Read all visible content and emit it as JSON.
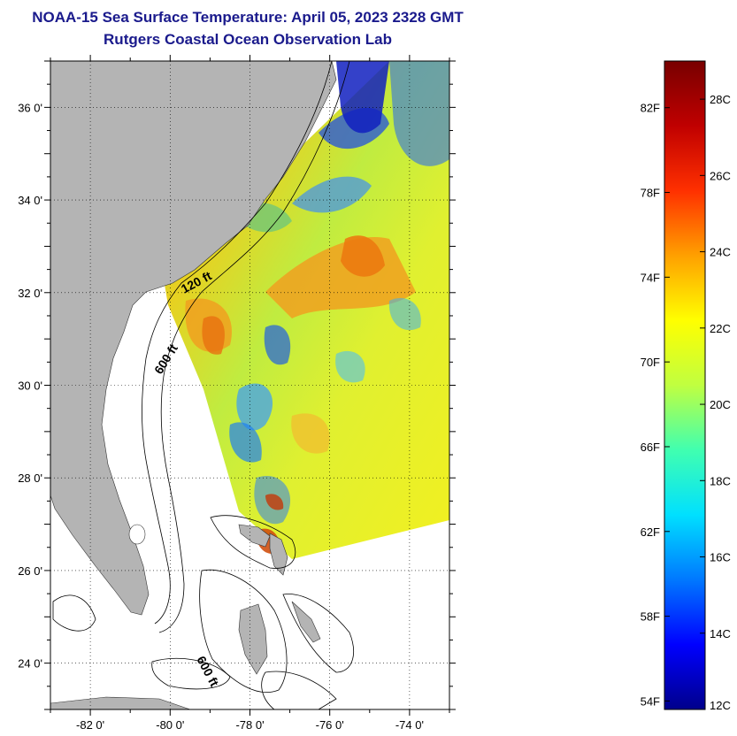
{
  "header": {
    "title": "NOAA-15 Sea Surface Temperature:  April 05, 2023 2328 GMT",
    "subtitle": "Rutgers Coastal Ocean Observation Lab"
  },
  "map": {
    "lat_labels": [
      "24 0'",
      "26 0'",
      "28 0'",
      "30 0'",
      "32 0'",
      "34 0'",
      "36 0'"
    ],
    "lat_values": [
      24,
      26,
      28,
      30,
      32,
      34,
      36
    ],
    "lon_labels": [
      "-82 0'",
      "-80 0'",
      "-78 0'",
      "-76 0'",
      "-74 0'"
    ],
    "lon_values": [
      -82,
      -80,
      -78,
      -76,
      -74
    ],
    "lat_range": [
      23,
      37
    ],
    "lon_range": [
      -83,
      -73
    ],
    "contours": {
      "c120": "120 ft",
      "c600a": "600 ft",
      "c600b": "600 ft"
    },
    "land_color": "#b4b4b4",
    "grid": "dotted"
  },
  "colorbar": {
    "f_labels": [
      "54F",
      "58F",
      "62F",
      "66F",
      "70F",
      "74F",
      "78F",
      "82F"
    ],
    "c_labels": [
      "12C",
      "14C",
      "16C",
      "18C",
      "20C",
      "22C",
      "24C",
      "26C",
      "28C"
    ],
    "range_c": [
      12,
      29
    ],
    "colors": [
      "#00008b",
      "#0000ff",
      "#0078ff",
      "#00e0ff",
      "#40ffb0",
      "#c0ff40",
      "#ffff00",
      "#ffa000",
      "#ff3000",
      "#c00000",
      "#780000"
    ]
  }
}
